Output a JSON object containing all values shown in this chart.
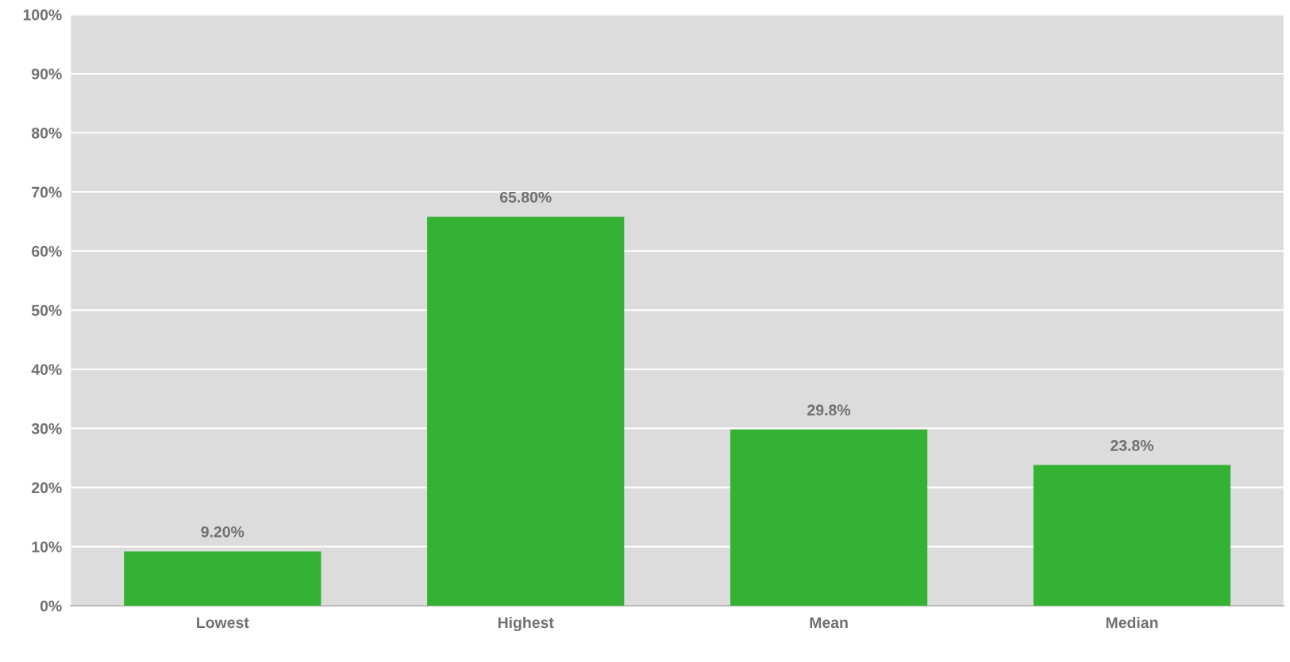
{
  "chart_data": {
    "type": "bar",
    "categories": [
      "Lowest",
      "Highest",
      "Mean",
      "Median"
    ],
    "values": [
      9.2,
      65.8,
      29.8,
      23.8
    ],
    "value_labels": [
      "9.20%",
      "65.80%",
      "29.8%",
      "23.8%"
    ],
    "color": "#34b234",
    "ylim": [
      0,
      100
    ],
    "yticks": [
      {
        "value": 0,
        "label": "0%"
      },
      {
        "value": 10,
        "label": "10%"
      },
      {
        "value": 20,
        "label": "20%"
      },
      {
        "value": 30,
        "label": "30%"
      },
      {
        "value": 40,
        "label": "40%"
      },
      {
        "value": 50,
        "label": "50%"
      },
      {
        "value": 60,
        "label": "60%"
      },
      {
        "value": 70,
        "label": "70%"
      },
      {
        "value": 80,
        "label": "80%"
      },
      {
        "value": 90,
        "label": "90%"
      },
      {
        "value": 100,
        "label": "100%"
      }
    ],
    "grid": "y"
  }
}
